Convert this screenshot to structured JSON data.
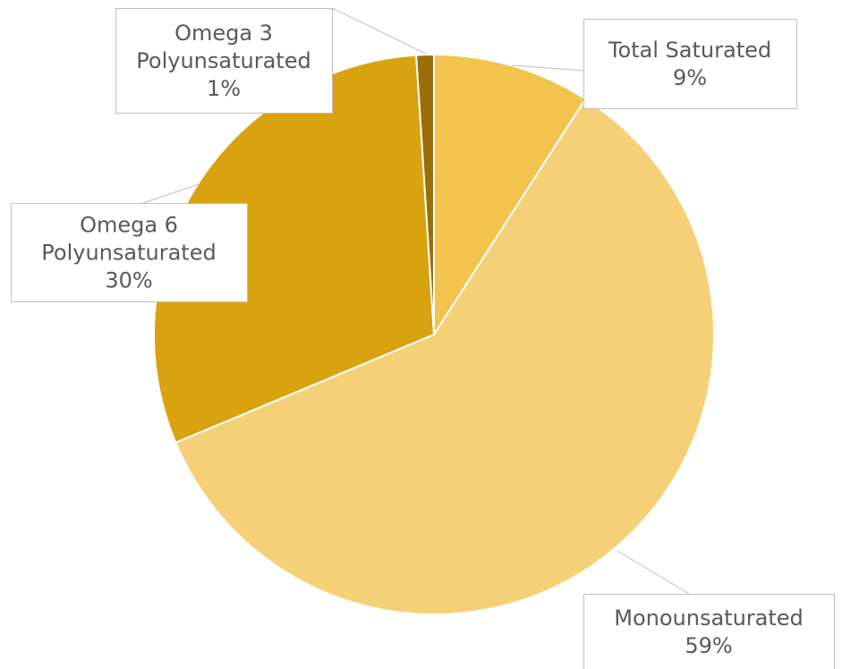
{
  "chart_data": {
    "type": "pie",
    "start_angle_deg": 0,
    "direction": "clockwise",
    "slices": [
      {
        "name_lines": [
          "Total Saturated"
        ],
        "value": 9,
        "pct_label": "9%",
        "color": "#F2C44D"
      },
      {
        "name_lines": [
          "Monounsaturated"
        ],
        "value": 59,
        "pct_label": "59%",
        "color": "#F6D077"
      },
      {
        "name_lines": [
          "Omega 6",
          "Polyunsaturated"
        ],
        "value": 30,
        "pct_label": "30%",
        "color": "#D9A20F"
      },
      {
        "name_lines": [
          "Omega 3",
          "Polyunsaturated"
        ],
        "value": 1,
        "pct_label": "1%",
        "color": "#9C6E0A"
      }
    ],
    "slice_border_color": "#ffffff",
    "callout_border_color": "#BFBFBF",
    "text_color": "#595959"
  }
}
